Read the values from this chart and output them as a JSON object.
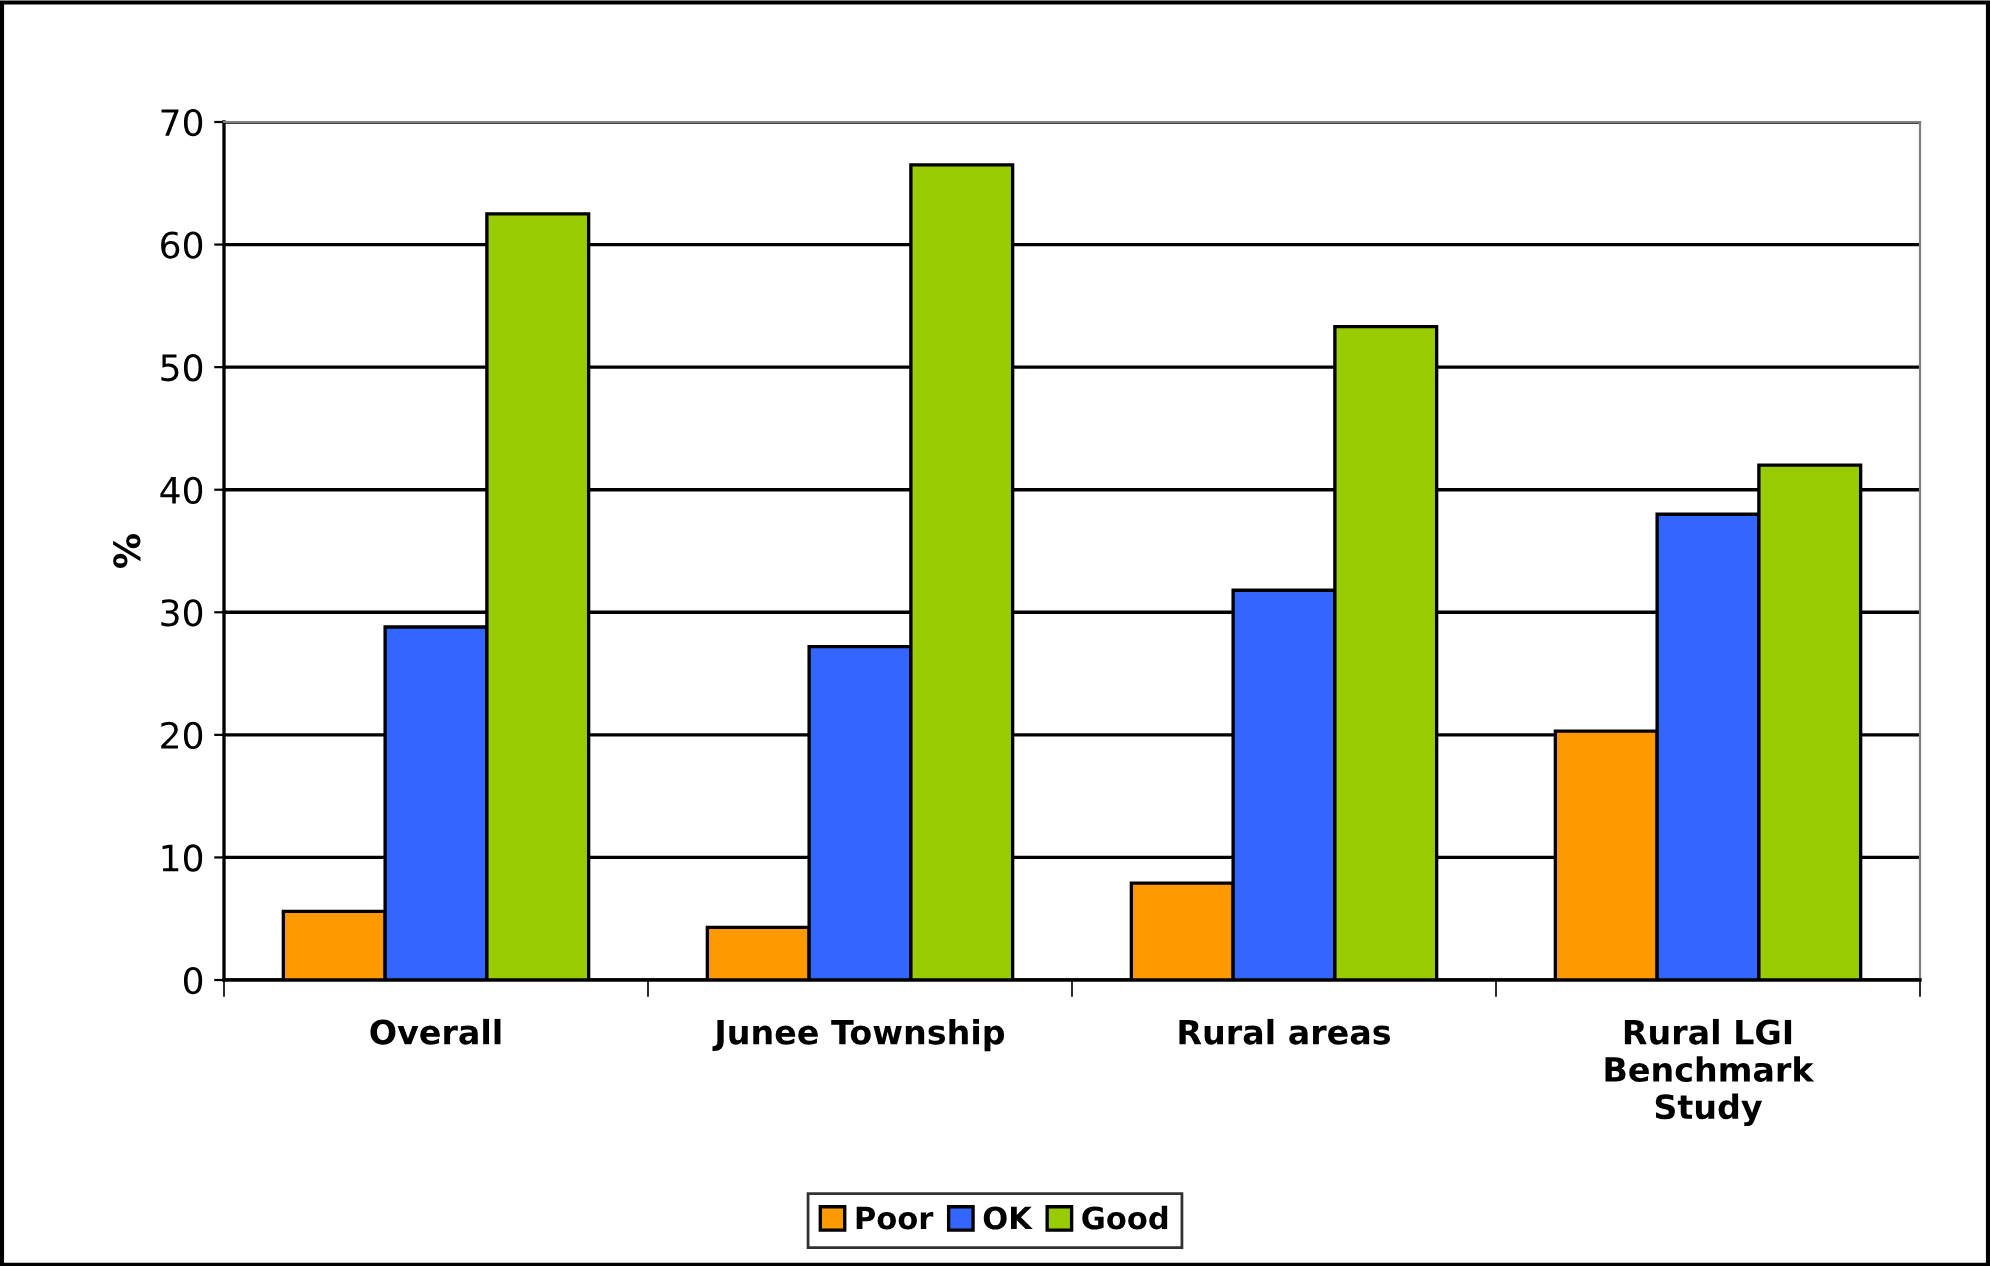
{
  "chart_data": {
    "type": "bar",
    "ylabel": "%",
    "categories": [
      "Overall",
      "Junee Township",
      "Rural areas",
      "Rural LGI\nBenchmark\nStudy"
    ],
    "series": [
      {
        "name": "Poor",
        "color": "#ff9900",
        "values": [
          5.6,
          4.3,
          7.9,
          20.3
        ]
      },
      {
        "name": "OK",
        "color": "#3366ff",
        "values": [
          28.8,
          27.2,
          31.8,
          38
        ]
      },
      {
        "name": "Good",
        "color": "#99cc00",
        "values": [
          62.5,
          66.5,
          53.3,
          42
        ]
      }
    ],
    "ylim": [
      0,
      70
    ],
    "yticks": [
      0,
      10,
      20,
      30,
      40,
      50,
      60,
      70
    ],
    "grid": "y",
    "legend": "bottom"
  }
}
